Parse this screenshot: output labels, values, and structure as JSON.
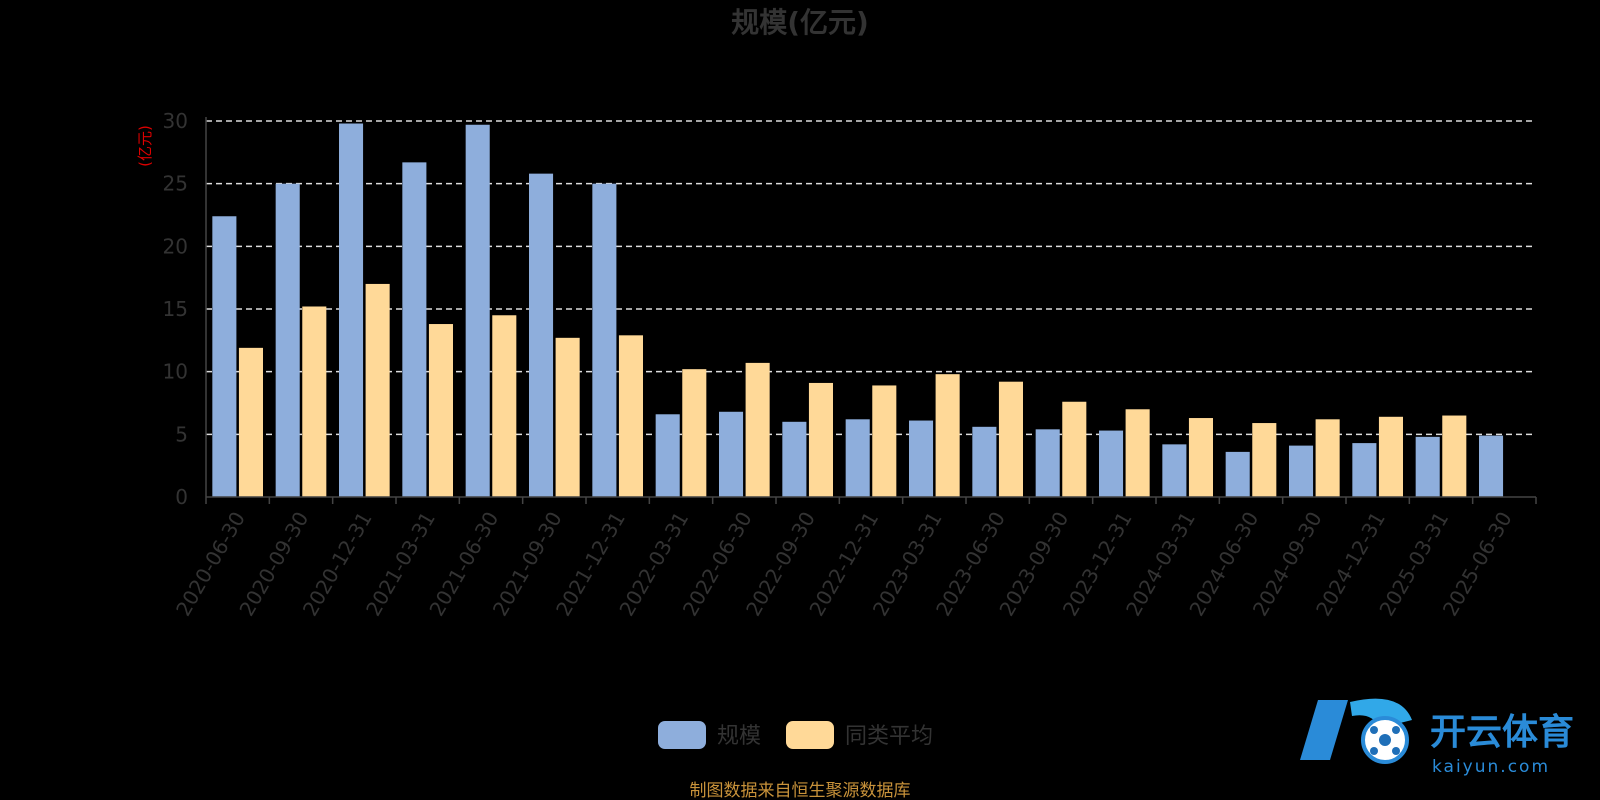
{
  "chart_data": {
    "type": "bar",
    "title": "规模(亿元)",
    "ylabel": "(亿元)",
    "ylim": [
      0,
      30
    ],
    "yticks": [
      0,
      5,
      10,
      15,
      20,
      25,
      30
    ],
    "grid": true,
    "legend_position": "bottom-center",
    "categories": [
      "2020-06-30",
      "2020-09-30",
      "2020-12-31",
      "2021-03-31",
      "2021-06-30",
      "2021-09-30",
      "2021-12-31",
      "2022-03-31",
      "2022-06-30",
      "2022-09-30",
      "2022-12-31",
      "2023-03-31",
      "2023-06-30",
      "2023-09-30",
      "2023-12-31",
      "2024-03-31",
      "2024-06-30",
      "2024-09-30",
      "2024-12-31",
      "2025-03-31",
      "2025-06-30"
    ],
    "series": [
      {
        "name": "规模",
        "color": "#8eaedc",
        "values": [
          22.4,
          25.0,
          29.8,
          26.7,
          29.7,
          25.8,
          25.0,
          6.6,
          6.8,
          6.0,
          6.2,
          6.1,
          5.6,
          5.4,
          5.3,
          4.2,
          3.6,
          4.1,
          4.3,
          4.8,
          4.9
        ]
      },
      {
        "name": "同类平均",
        "color": "#ffd998",
        "values": [
          11.9,
          15.2,
          17.0,
          13.8,
          14.5,
          12.7,
          12.9,
          10.2,
          10.7,
          9.1,
          8.9,
          9.8,
          9.2,
          7.6,
          7.0,
          6.3,
          5.9,
          6.2,
          6.4,
          6.5,
          null
        ]
      }
    ]
  },
  "footer": {
    "source": "制图数据来自恒生聚源数据库"
  },
  "watermark": {
    "brand": "开云体育",
    "url": "kaiyun.com",
    "icon": "soccer-ball-k-logo-icon"
  }
}
